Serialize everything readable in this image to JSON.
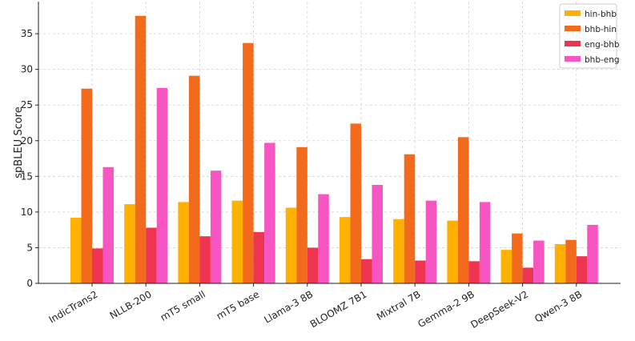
{
  "chart_data": {
    "type": "bar",
    "title": "",
    "xlabel": "",
    "ylabel": "spBLEU Score",
    "ylim": [
      0,
      39.5
    ],
    "yticks": [
      0,
      5,
      10,
      15,
      20,
      25,
      30,
      35
    ],
    "grid": true,
    "legend_position": "top-right",
    "categories": [
      "IndicTrans2",
      "NLLB-200",
      "mT5 small",
      "mT5 base",
      "Llama-3 8B",
      "BLOOMZ 7B1",
      "Mixtral 7B",
      "Gemma-2 9B",
      "DeepSeek-V2",
      "Qwen-3 8B"
    ],
    "series": [
      {
        "name": "hin-bhb",
        "color": "#FFB000",
        "values": [
          9.2,
          11.1,
          11.4,
          11.6,
          10.6,
          9.3,
          9.0,
          8.8,
          4.7,
          5.5
        ]
      },
      {
        "name": "bhb-hin",
        "color": "#F26B1D",
        "values": [
          27.3,
          37.5,
          29.1,
          33.7,
          19.1,
          22.4,
          18.1,
          20.5,
          7.0,
          6.1
        ]
      },
      {
        "name": "eng-bhb",
        "color": "#EE3451",
        "values": [
          4.9,
          7.8,
          6.6,
          7.2,
          5.0,
          3.4,
          3.2,
          3.1,
          2.2,
          3.8
        ]
      },
      {
        "name": "bhb-eng",
        "color": "#F655C2",
        "values": [
          16.3,
          27.4,
          15.8,
          19.7,
          12.5,
          13.8,
          11.6,
          11.4,
          6.0,
          8.2
        ]
      }
    ]
  }
}
